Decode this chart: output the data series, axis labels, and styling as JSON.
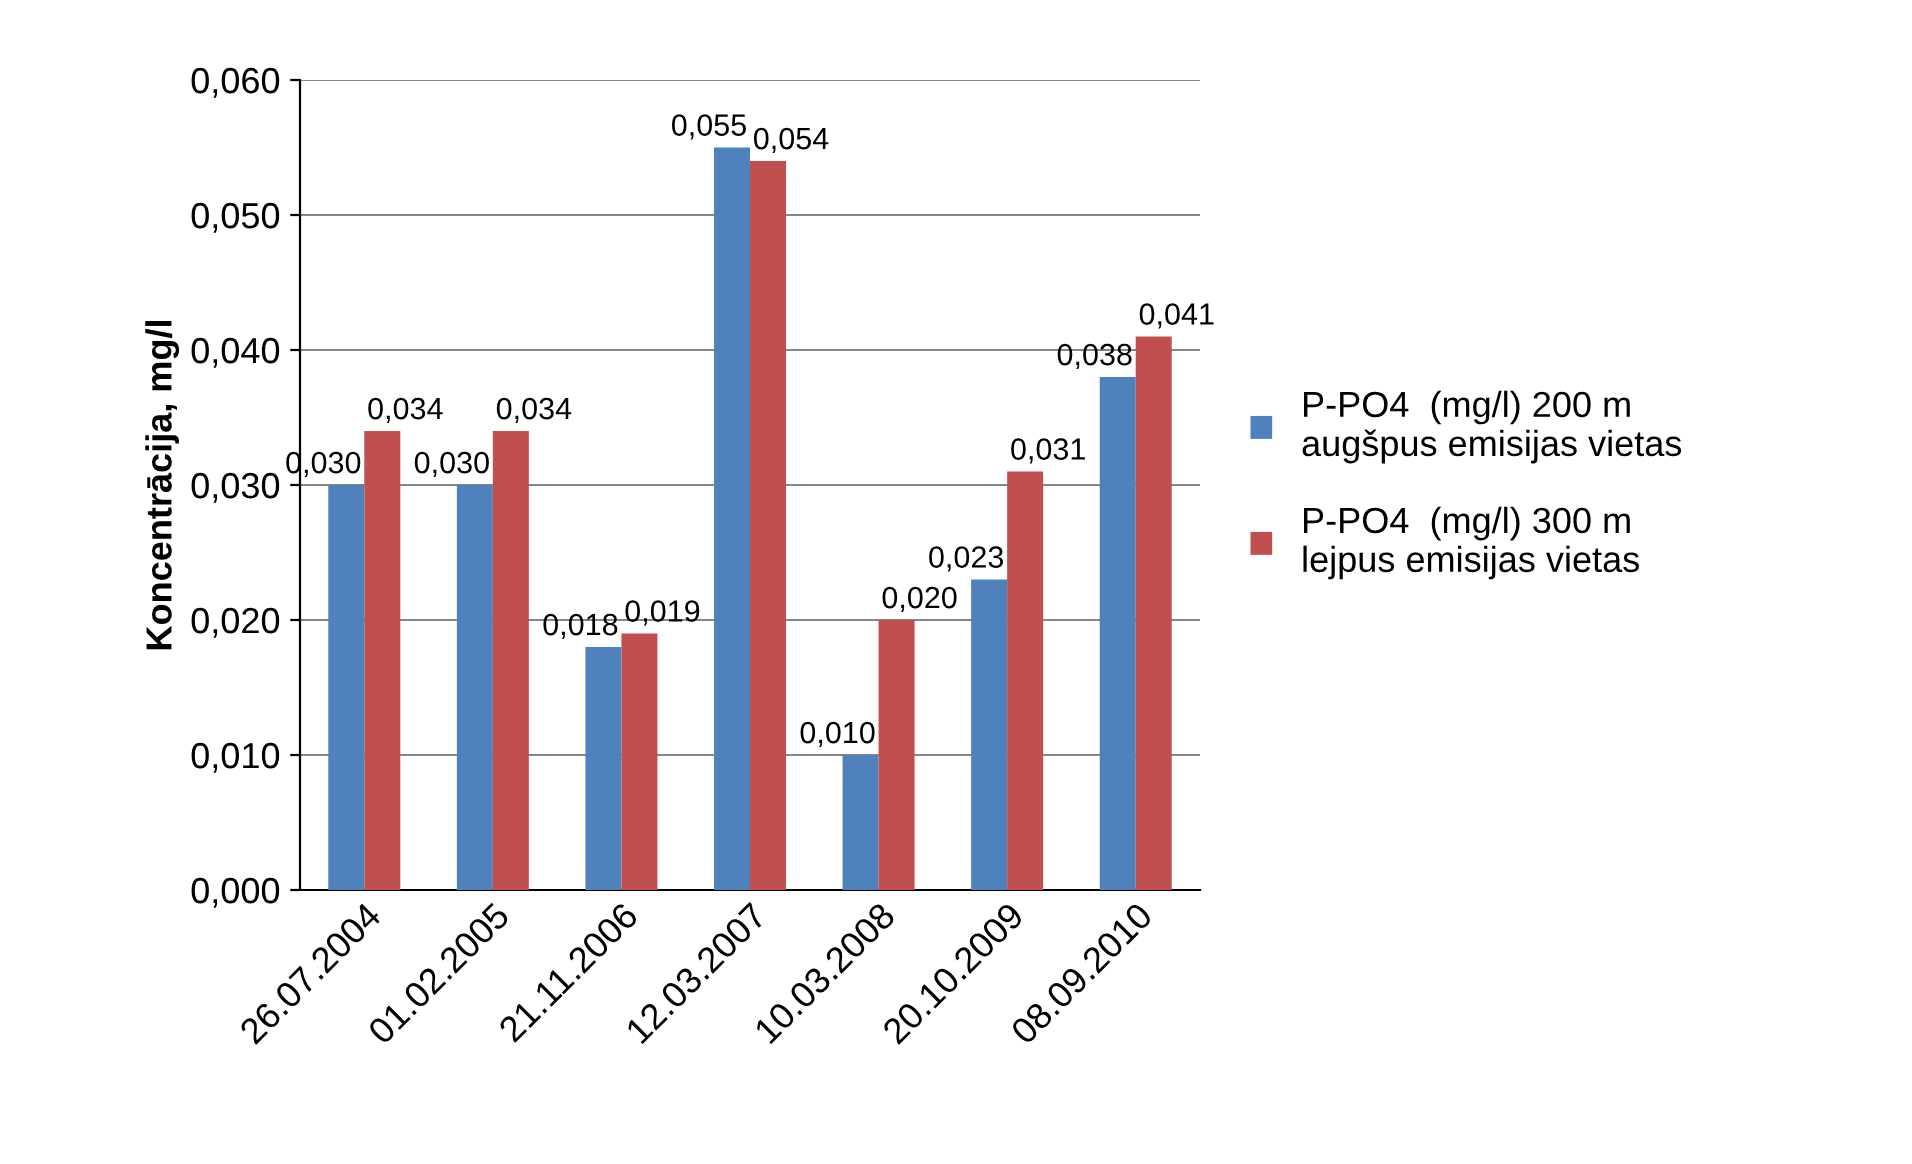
{
  "chart_data": {
    "type": "bar",
    "ylabel": "Koncentrācija, mg/l",
    "categories": [
      "26.07.2004",
      "01.02.2005",
      "21.11.2006",
      "12.03.2007",
      "10.03.2008",
      "20.10.2009",
      "08.09.2010"
    ],
    "series": [
      {
        "name": "P-PO4  (mg/l) 200 m\naugšpus emisijas vietas",
        "color": "#4f81bd",
        "values": [
          0.03,
          0.03,
          0.018,
          0.055,
          0.01,
          0.023,
          0.038
        ],
        "value_labels": [
          "0,030",
          "0,030",
          "0,018",
          "0,055",
          "0,010",
          "0,023",
          "0,038"
        ]
      },
      {
        "name": "P-PO4  (mg/l) 300 m\nlejpus emisijas vietas",
        "color": "#c0504d",
        "values": [
          0.034,
          0.034,
          0.019,
          0.054,
          0.02,
          0.031,
          0.041
        ],
        "value_labels": [
          "0,034",
          "0,034",
          "0,019",
          "0,054",
          "0,020",
          "0,031",
          "0,041"
        ]
      }
    ],
    "ylim": [
      0,
      0.06
    ],
    "yticks": [
      {
        "value": 0,
        "label": "0,000"
      },
      {
        "value": 0.01,
        "label": "0,010"
      },
      {
        "value": 0.02,
        "label": "0,020"
      },
      {
        "value": 0.03,
        "label": "0,030"
      },
      {
        "value": 0.04,
        "label": "0,040"
      },
      {
        "value": 0.05,
        "label": "0,050"
      },
      {
        "value": 0.06,
        "label": "0,060"
      }
    ],
    "grid": "y",
    "legend": "right"
  }
}
